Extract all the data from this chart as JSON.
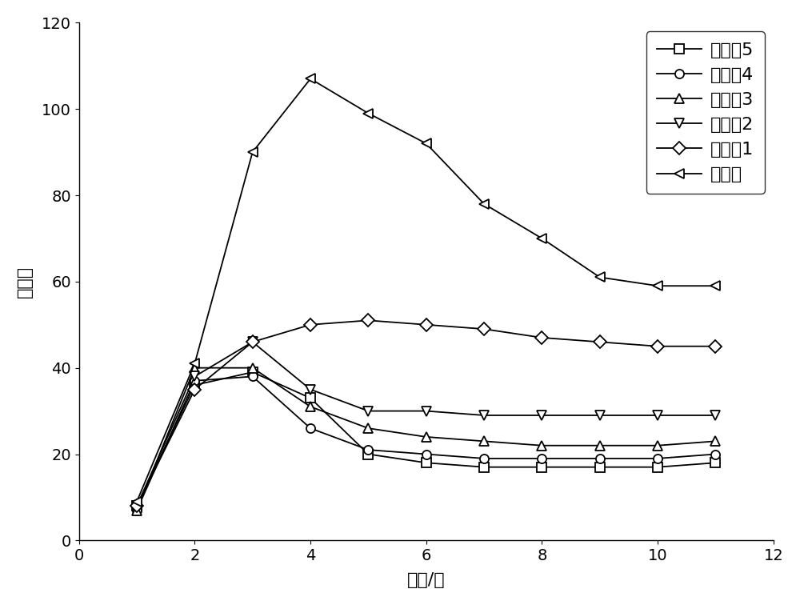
{
  "title": "",
  "xlabel": "时间/天",
  "ylabel": "溶胀率",
  "xlim": [
    0,
    12
  ],
  "ylim": [
    0,
    120
  ],
  "xticks": [
    0,
    2,
    4,
    6,
    8,
    10,
    12
  ],
  "yticks": [
    0,
    20,
    40,
    60,
    80,
    100,
    120
  ],
  "series": [
    {
      "label": "实施例5",
      "marker": "s",
      "x": [
        1,
        2,
        3,
        4,
        5,
        6,
        7,
        8,
        9,
        10,
        11
      ],
      "y": [
        8,
        36,
        39,
        33,
        20,
        18,
        17,
        17,
        17,
        17,
        18
      ]
    },
    {
      "label": "实施例4",
      "marker": "o",
      "x": [
        1,
        2,
        3,
        4,
        5,
        6,
        7,
        8,
        9,
        10,
        11
      ],
      "y": [
        7,
        37,
        38,
        26,
        21,
        20,
        19,
        19,
        19,
        19,
        20
      ]
    },
    {
      "label": "实施例3",
      "marker": "^",
      "x": [
        1,
        2,
        3,
        4,
        5,
        6,
        7,
        8,
        9,
        10,
        11
      ],
      "y": [
        7,
        40,
        40,
        31,
        26,
        24,
        23,
        22,
        22,
        22,
        23
      ]
    },
    {
      "label": "实施例2",
      "marker": "v",
      "x": [
        1,
        2,
        3,
        4,
        5,
        6,
        7,
        8,
        9,
        10,
        11
      ],
      "y": [
        8,
        38,
        46,
        35,
        30,
        30,
        29,
        29,
        29,
        29,
        29
      ]
    },
    {
      "label": "实施例1",
      "marker": "D",
      "x": [
        1,
        2,
        3,
        4,
        5,
        6,
        7,
        8,
        9,
        10,
        11
      ],
      "y": [
        8,
        35,
        46,
        50,
        51,
        50,
        49,
        47,
        46,
        45,
        45
      ]
    },
    {
      "label": "对比例",
      "marker": "<",
      "x": [
        1,
        2,
        3,
        4,
        5,
        6,
        7,
        8,
        9,
        10,
        11
      ],
      "y": [
        9,
        41,
        90,
        107,
        99,
        92,
        78,
        70,
        61,
        59,
        59
      ]
    }
  ],
  "legend_loc": "upper right",
  "figsize": [
    10.0,
    7.56
  ],
  "dpi": 100,
  "font_size": 16,
  "tick_font_size": 14,
  "linewidth": 1.3,
  "markersize": 8
}
